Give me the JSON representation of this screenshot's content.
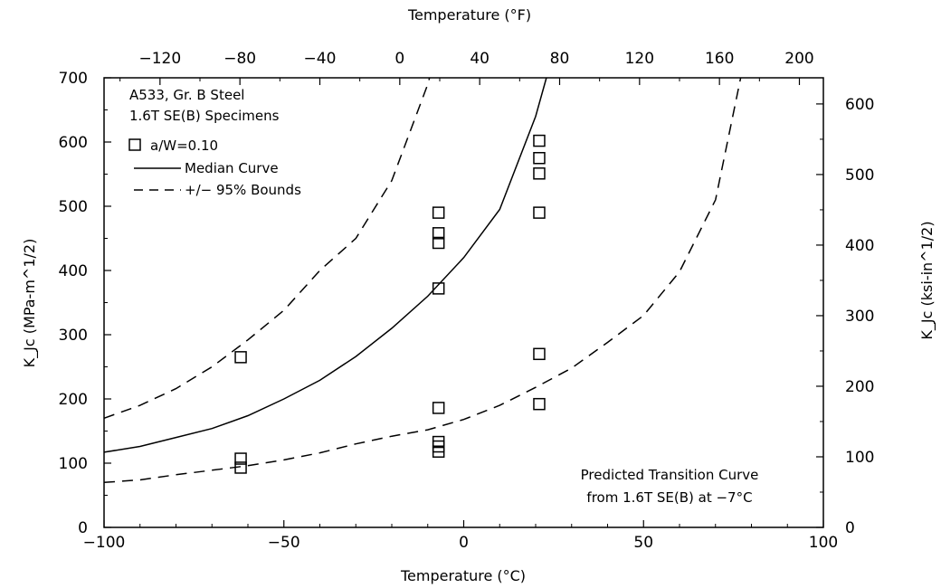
{
  "chart_data": {
    "type": "scatter",
    "title": "",
    "xlabel": "Temperature (°C)",
    "x2label": "Temperature (°F)",
    "ylabel": "K_Jc (MPa-m^1/2)",
    "y2label": "K_Jc (ksi-in^1/2)",
    "xlim": [
      -100,
      100
    ],
    "ylim": [
      0,
      700
    ],
    "x_ticks": [
      -100,
      -50,
      0,
      50,
      100
    ],
    "x_tick_labels": [
      "−100",
      "−50",
      "0",
      "50",
      "100"
    ],
    "y_ticks": [
      0,
      100,
      200,
      300,
      400,
      500,
      600,
      700
    ],
    "y_tick_labels": [
      "0",
      "100",
      "200",
      "300",
      "400",
      "500",
      "600",
      "700"
    ],
    "x2_ticks": [
      -120,
      -80,
      -40,
      0,
      40,
      80,
      120,
      160,
      200
    ],
    "x2_tick_labels": [
      "−120",
      "−80",
      "−40",
      "0",
      "40",
      "80",
      "120",
      "160",
      "200"
    ],
    "y2_ticks": [
      0,
      100,
      200,
      300,
      400,
      500,
      600
    ],
    "y2_tick_labels": [
      "0",
      "100",
      "200",
      "300",
      "400",
      "500",
      "600"
    ],
    "grid": false,
    "legend_position": "top-left",
    "legend_title": [
      "A533, Gr. B Steel",
      "1.6T SE(B) Specimens"
    ],
    "annotation": [
      "Predicted Transition Curve",
      "from 1.6T SE(B) at −7°C"
    ],
    "series": [
      {
        "name": "a/W=0.10",
        "kind": "scatter",
        "marker": "open-square",
        "points": [
          [
            -62,
            265
          ],
          [
            -62,
            107
          ],
          [
            -62,
            93
          ],
          [
            -7,
            490
          ],
          [
            -7,
            458
          ],
          [
            -7,
            443
          ],
          [
            -7,
            372
          ],
          [
            -7,
            186
          ],
          [
            -7,
            133
          ],
          [
            -7,
            126
          ],
          [
            -7,
            118
          ],
          [
            21,
            602
          ],
          [
            21,
            575
          ],
          [
            21,
            551
          ],
          [
            21,
            490
          ],
          [
            21,
            270
          ],
          [
            21,
            192
          ]
        ]
      },
      {
        "name": "Median Curve",
        "kind": "line",
        "style": "solid",
        "points": [
          [
            -100,
            117
          ],
          [
            -90,
            126
          ],
          [
            -80,
            140
          ],
          [
            -70,
            154
          ],
          [
            -60,
            174
          ],
          [
            -50,
            200
          ],
          [
            -40,
            229
          ],
          [
            -30,
            266
          ],
          [
            -20,
            310
          ],
          [
            -10,
            360
          ],
          [
            0,
            420
          ],
          [
            10,
            495
          ],
          [
            20,
            640
          ],
          [
            23,
            700
          ]
        ]
      },
      {
        "name": "+/− 95% Bounds",
        "kind": "line",
        "style": "dashed",
        "points": [
          [
            -100,
            170
          ],
          [
            -90,
            190
          ],
          [
            -80,
            216
          ],
          [
            -70,
            250
          ],
          [
            -60,
            292
          ],
          [
            -50,
            338
          ],
          [
            -40,
            400
          ],
          [
            -30,
            450
          ],
          [
            -20,
            540
          ],
          [
            -10,
            690
          ],
          [
            -9.5,
            700
          ]
        ]
      },
      {
        "name": "+/− 95% Bounds (lower)",
        "kind": "line",
        "style": "dashed",
        "points": [
          [
            -100,
            70
          ],
          [
            -90,
            74
          ],
          [
            -80,
            82
          ],
          [
            -70,
            89
          ],
          [
            -60,
            96
          ],
          [
            -50,
            105
          ],
          [
            -40,
            116
          ],
          [
            -30,
            130
          ],
          [
            -20,
            142
          ],
          [
            -10,
            152
          ],
          [
            0,
            168
          ],
          [
            10,
            190
          ],
          [
            20,
            218
          ],
          [
            30,
            248
          ],
          [
            40,
            288
          ],
          [
            50,
            330
          ],
          [
            60,
            398
          ],
          [
            70,
            510
          ],
          [
            77,
            700
          ]
        ]
      }
    ]
  }
}
